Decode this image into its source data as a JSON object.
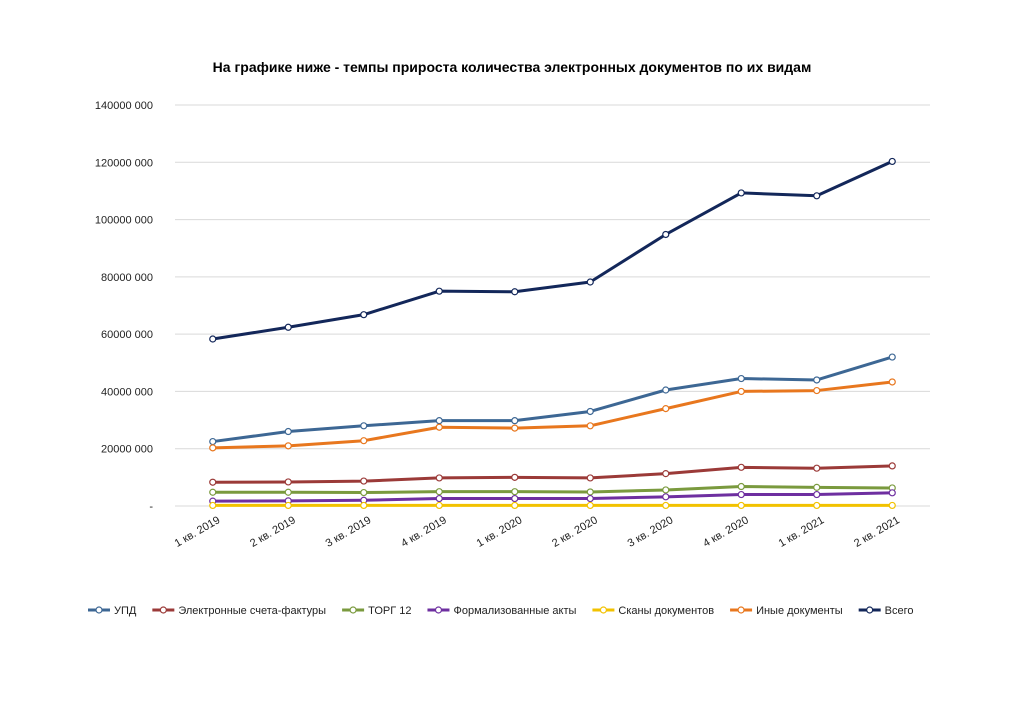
{
  "chart_data": {
    "type": "line",
    "title": "На графике ниже - темпы прироста количества электронных документов по их видам",
    "categories": [
      "1 кв. 2019",
      "2 кв. 2019",
      "3 кв. 2019",
      "4 кв. 2019",
      "1 кв. 2020",
      "2 кв. 2020",
      "3 кв. 2020",
      "4 кв. 2020",
      "1 кв. 2021",
      "2 кв. 2021"
    ],
    "ylim": [
      0,
      140000000
    ],
    "yticks": [
      {
        "value": 0,
        "label": "-"
      },
      {
        "value": 20000000,
        "label": "20000 000"
      },
      {
        "value": 40000000,
        "label": "40000 000"
      },
      {
        "value": 60000000,
        "label": "60000 000"
      },
      {
        "value": 80000000,
        "label": "80000 000"
      },
      {
        "value": 100000000,
        "label": "100000 000"
      },
      {
        "value": 120000000,
        "label": "120000 000"
      },
      {
        "value": 140000000,
        "label": "140000 000"
      }
    ],
    "grid": true,
    "legend_position": "bottom",
    "series": [
      {
        "name": "УПД",
        "color": "#3d6794",
        "values": [
          22500000,
          26000000,
          28000000,
          29800000,
          29800000,
          33000000,
          40500000,
          44500000,
          44000000,
          52000000
        ]
      },
      {
        "name": "Электронные счета-фактуры",
        "color": "#9b3a38",
        "values": [
          8300000,
          8400000,
          8700000,
          9800000,
          10000000,
          9800000,
          11300000,
          13500000,
          13200000,
          14000000
        ]
      },
      {
        "name": "ТОРГ 12",
        "color": "#7a9a3e",
        "values": [
          4800000,
          4800000,
          4700000,
          5000000,
          5000000,
          4900000,
          5600000,
          6800000,
          6500000,
          6300000
        ]
      },
      {
        "name": "Формализованные акты",
        "color": "#6e2fa0",
        "values": [
          1700000,
          1800000,
          2000000,
          2600000,
          2600000,
          2600000,
          3200000,
          4000000,
          4000000,
          4600000
        ]
      },
      {
        "name": "Сканы документов",
        "color": "#f2c200",
        "values": [
          200000,
          200000,
          200000,
          200000,
          200000,
          200000,
          200000,
          200000,
          200000,
          200000
        ]
      },
      {
        "name": "Иные документы",
        "color": "#e8771e",
        "values": [
          20300000,
          21000000,
          22800000,
          27500000,
          27200000,
          28000000,
          34000000,
          40000000,
          40300000,
          43300000
        ]
      },
      {
        "name": "Всего",
        "color": "#13275a",
        "values": [
          58300000,
          62400000,
          66800000,
          75000000,
          74800000,
          78200000,
          94800000,
          109300000,
          108300000,
          120300000
        ]
      }
    ]
  }
}
